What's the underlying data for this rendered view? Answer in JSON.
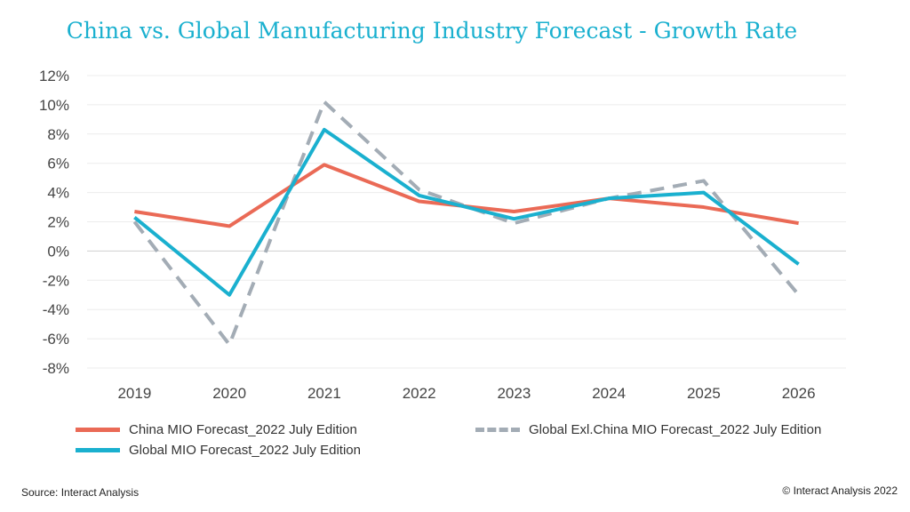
{
  "chart_data": {
    "type": "line",
    "title": "China vs. Global Manufacturing Industry Forecast  - Growth Rate",
    "categories": [
      "2019",
      "2020",
      "2021",
      "2022",
      "2023",
      "2024",
      "2025",
      "2026"
    ],
    "ylim": [
      -8,
      12
    ],
    "yticks": [
      "12%",
      "10%",
      "8%",
      "6%",
      "4%",
      "2%",
      "0%",
      "-2%",
      "-4%",
      "-6%",
      "-8%"
    ],
    "ytick_values": [
      12,
      10,
      8,
      6,
      4,
      2,
      0,
      -2,
      -4,
      -6,
      -8
    ],
    "grid": true,
    "legend_position": "bottom",
    "series": [
      {
        "name": "China MIO Forecast_2022 July Edition",
        "values": [
          2.7,
          1.7,
          5.9,
          3.4,
          2.7,
          3.6,
          3.0,
          1.9
        ],
        "color": "#ea6a56",
        "style": "solid"
      },
      {
        "name": "Global Exl.China MIO Forecast_2022 July Edition",
        "values": [
          2.0,
          -6.4,
          10.2,
          4.2,
          1.9,
          3.6,
          4.8,
          -3.0
        ],
        "color": "#a3acb5",
        "style": "dashed"
      },
      {
        "name": "Global MIO Forecast_2022 July Edition",
        "values": [
          2.3,
          -3.0,
          8.3,
          3.8,
          2.2,
          3.6,
          4.0,
          -0.9
        ],
        "color": "#1ab0cf",
        "style": "solid"
      }
    ]
  },
  "footer": {
    "source": "Source: Interact Analysis",
    "copyright": "© Interact Analysis 2022"
  }
}
